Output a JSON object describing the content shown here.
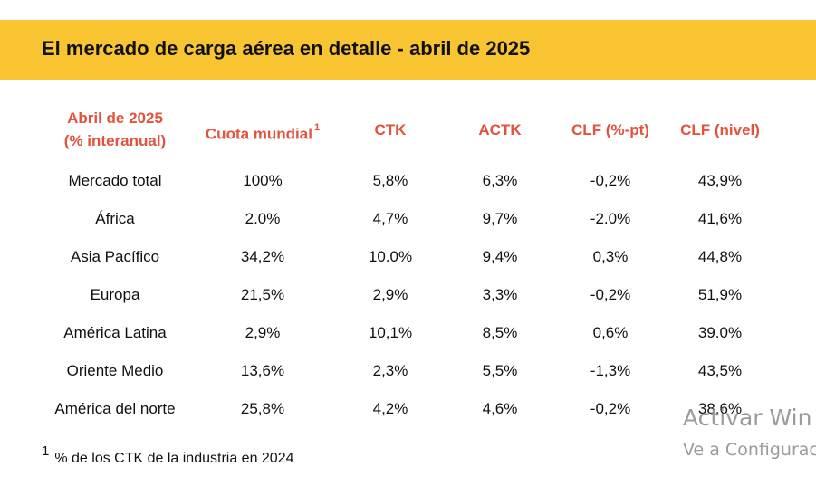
{
  "title": "El mercado de carga aérea en detalle - abril de 2025",
  "table": {
    "headers": {
      "region_line1": "Abril de 2025",
      "region_line2": "(% interanual)",
      "share": "Cuota mundial",
      "share_note": "1",
      "ctk": "CTK",
      "actk": "ACTK",
      "clf_pt": "CLF (%-pt)",
      "clf_level": "CLF (nivel)"
    },
    "rows": [
      {
        "region": "Mercado total",
        "share": "100%",
        "ctk": "5,8%",
        "actk": "6,3%",
        "clf_pt": "-0,2%",
        "clf_level": "43,9%"
      },
      {
        "region": "África",
        "share": "2.0%",
        "ctk": "4,7%",
        "actk": "9,7%",
        "clf_pt": "-2.0%",
        "clf_level": "41,6%"
      },
      {
        "region": "Asia Pacífico",
        "share": "34,2%",
        "ctk": "10.0%",
        "actk": "9,4%",
        "clf_pt": "0,3%",
        "clf_level": "44,8%"
      },
      {
        "region": "Europa",
        "share": "21,5%",
        "ctk": "2,9%",
        "actk": "3,3%",
        "clf_pt": "-0,2%",
        "clf_level": "51,9%"
      },
      {
        "region": "América Latina",
        "share": "2,9%",
        "ctk": "10,1%",
        "actk": "8,5%",
        "clf_pt": "0,6%",
        "clf_level": "39.0%"
      },
      {
        "region": "Oriente Medio",
        "share": "13,6%",
        "ctk": "2,3%",
        "actk": "5,5%",
        "clf_pt": "-1,3%",
        "clf_level": "43,5%"
      },
      {
        "region": "América del norte",
        "share": "25,8%",
        "ctk": "4,2%",
        "actk": "4,6%",
        "clf_pt": "-0,2%",
        "clf_level": "38,6%"
      }
    ]
  },
  "footnote": {
    "number": "1",
    "text": "% de los CTK de la industria en 2024"
  },
  "watermark": {
    "line1": "Activar Win",
    "line2": "Ve a Configurac"
  }
}
